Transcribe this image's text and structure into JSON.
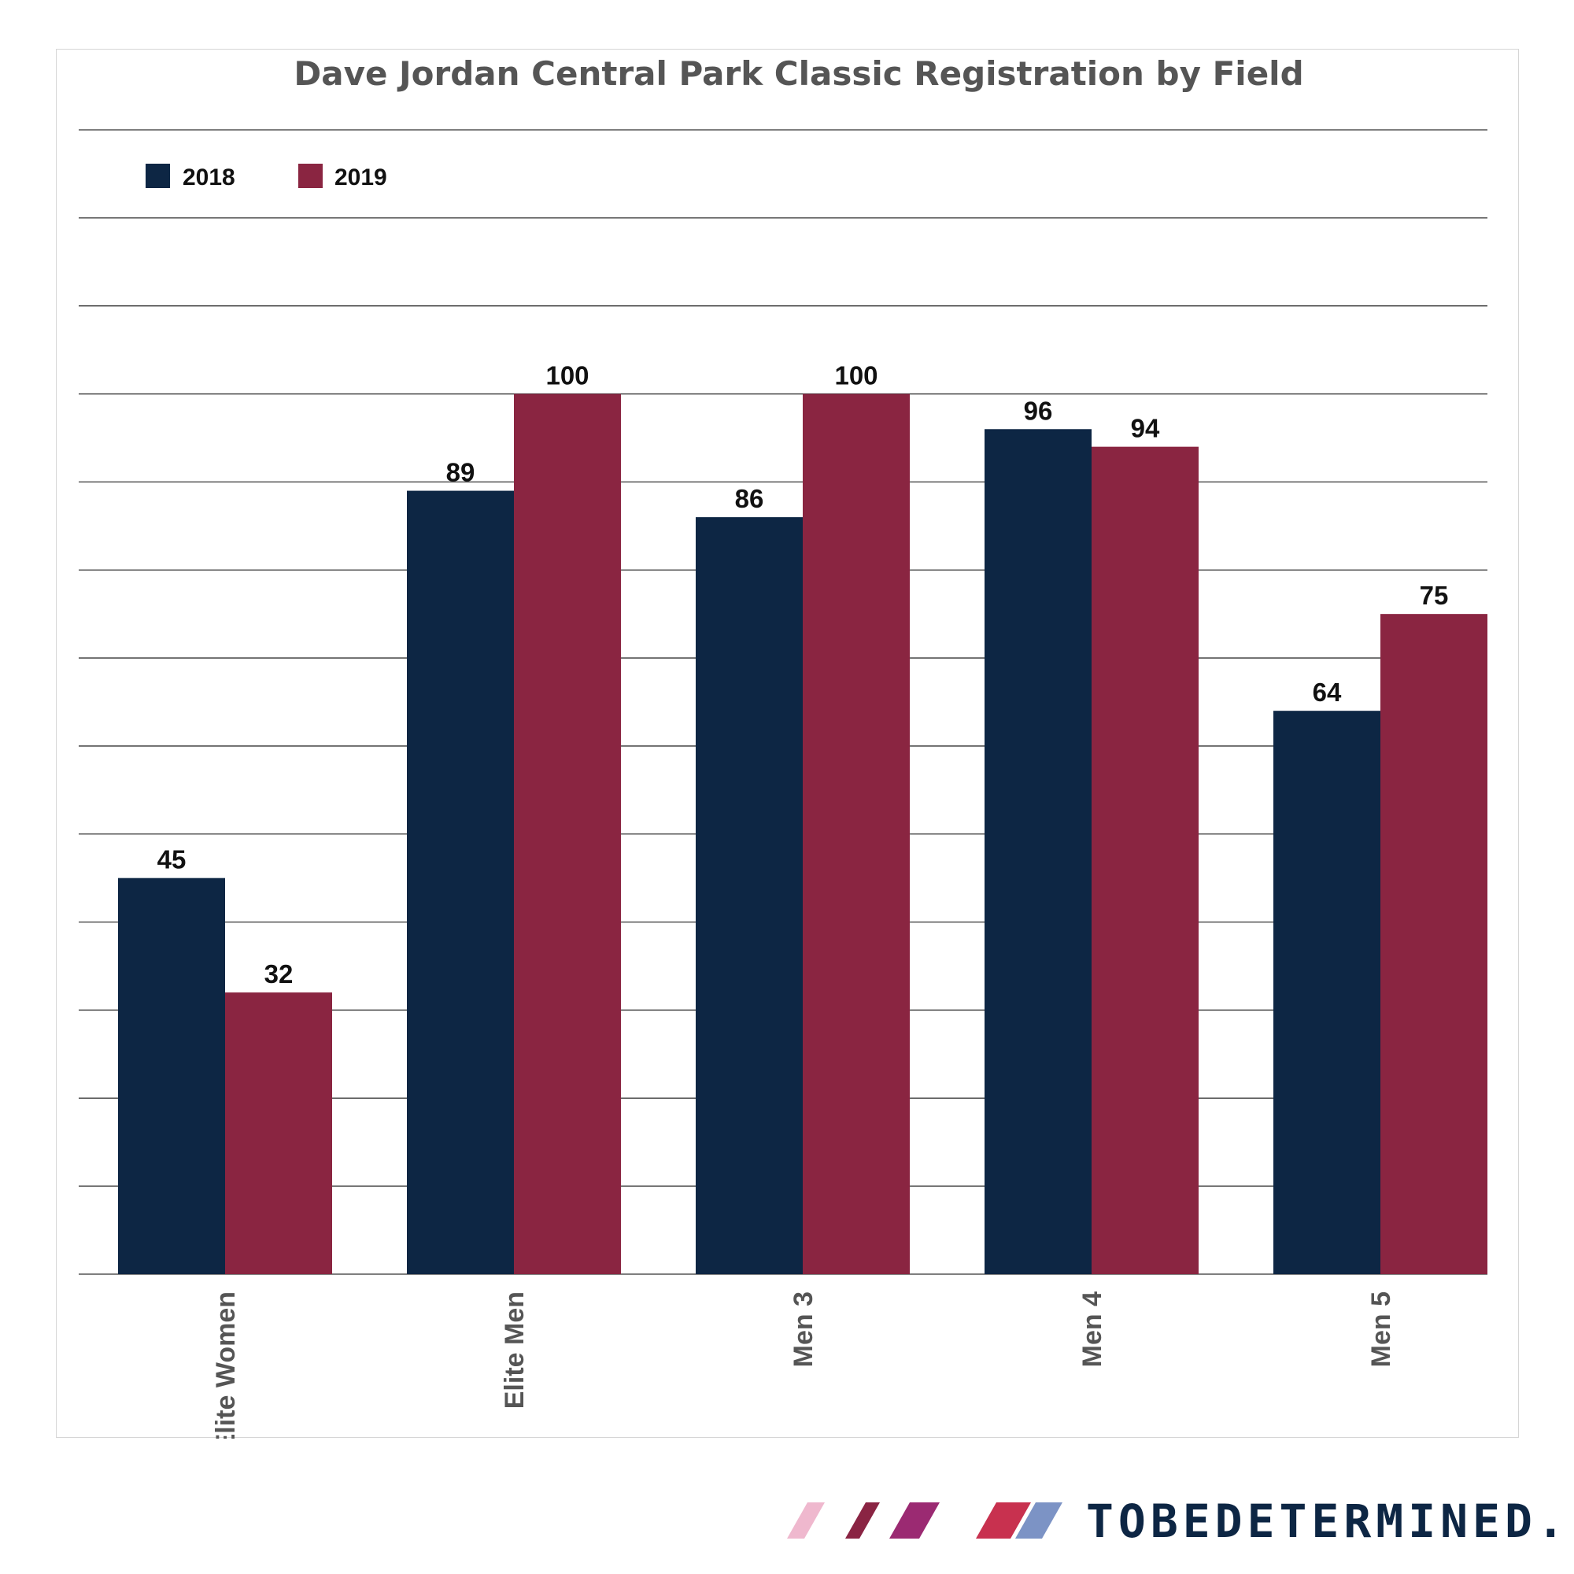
{
  "brand": {
    "text": "TOBEDETERMINED.CC",
    "stripe_colors": [
      "#efb8ce",
      "#8a2443",
      "#9b2a72",
      "#c8314f",
      "#7c93c5"
    ]
  },
  "chart_data": {
    "type": "bar",
    "title": "Dave Jordan Central Park Classic Registration by Field",
    "categories": [
      "Elite Women",
      "Elite Men",
      "Men 3",
      "Men 4",
      "Men 5"
    ],
    "series": [
      {
        "name": "2018",
        "color": "#0d2644",
        "values": [
          45,
          89,
          86,
          96,
          64
        ]
      },
      {
        "name": "2019",
        "color": "#8a2541",
        "values": [
          32,
          100,
          100,
          94,
          75
        ]
      }
    ],
    "ylim": [
      0,
      100
    ],
    "gridlines": true,
    "y_tick_labels_visible": false,
    "legend": "top-left",
    "data_labels": true,
    "xlabel": "",
    "ylabel": ""
  }
}
